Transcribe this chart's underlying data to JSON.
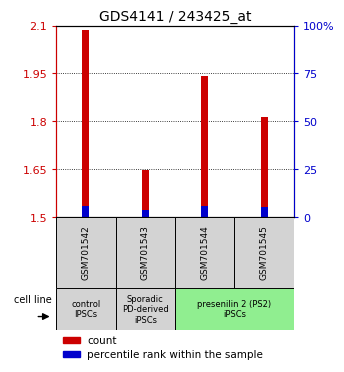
{
  "title": "GDS4141 / 243425_at",
  "samples": [
    "GSM701542",
    "GSM701543",
    "GSM701544",
    "GSM701545"
  ],
  "red_values": [
    2.085,
    1.648,
    1.943,
    1.815
  ],
  "blue_values": [
    1.533,
    1.522,
    1.533,
    1.531
  ],
  "ymin": 1.5,
  "ymax": 2.1,
  "yticks_left": [
    1.5,
    1.65,
    1.8,
    1.95,
    2.1
  ],
  "yticks_right": [
    0,
    25,
    50,
    75,
    100
  ],
  "ytick_labels_right": [
    "0",
    "25",
    "50",
    "75",
    "100%"
  ],
  "bar_width": 0.12,
  "red_color": "#cc0000",
  "blue_color": "#0000cc",
  "cell_line_label": "cell line",
  "legend_red": "count",
  "legend_blue": "percentile rank within the sample",
  "background_color": "#ffffff",
  "group_info": [
    {
      "label": "control\nIPSCs",
      "xstart": -0.5,
      "xend": 0.5,
      "color": "#d3d3d3"
    },
    {
      "label": "Sporadic\nPD-derived\niPSCs",
      "xstart": 0.5,
      "xend": 1.5,
      "color": "#d3d3d3"
    },
    {
      "label": "presenilin 2 (PS2)\niPSCs",
      "xstart": 1.5,
      "xend": 3.5,
      "color": "#90ee90"
    }
  ]
}
